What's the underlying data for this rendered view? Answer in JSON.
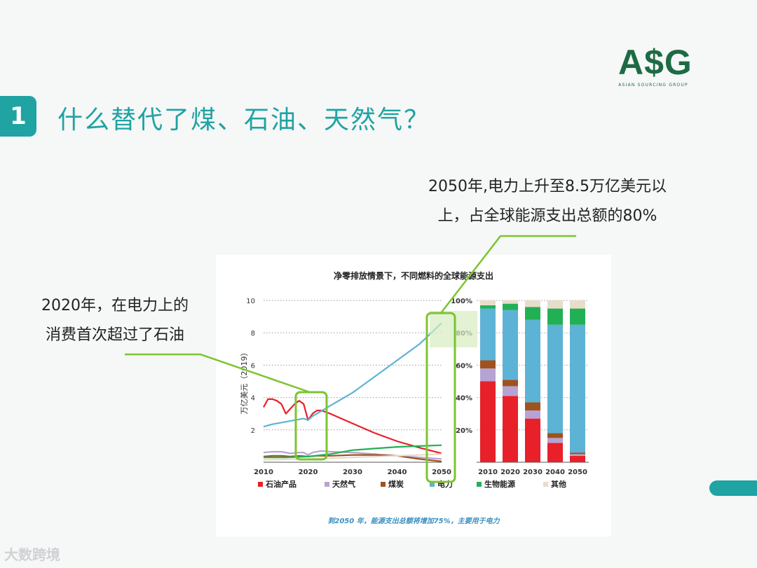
{
  "slide": {
    "number": "1",
    "title": "什么替代了煤、石油、天然气？",
    "logo_text": "A$G",
    "logo_subtext": "ASIAN SOURCING GROUP",
    "note_right_line1": "2050年,电力上升至8.5万亿美元以",
    "note_right_line2": "上，占全球能源支出总额的80%",
    "note_left_line1": "2020年，在电力上的",
    "note_left_line2": "消费首次超过了石油",
    "watermark": "大数跨境",
    "colors": {
      "accent": "#1fa3a3",
      "logo": "#1d6b44",
      "callout": "#7cc430"
    }
  },
  "chart_data": [
    {
      "type": "line",
      "title": "净零排放情景下，不同燃料的全球能源支出",
      "ylabel": "万亿美元（2019）",
      "xlabel": "",
      "xlim": [
        2010,
        2050
      ],
      "ylim": [
        0,
        10
      ],
      "xticks": [
        "2010",
        "2020",
        "2030",
        "2040",
        "2050"
      ],
      "yticks": [
        "2",
        "4",
        "6",
        "8",
        "10"
      ],
      "grid": true,
      "series": [
        {
          "name": "石油产品",
          "color": "#e8202a",
          "points": [
            [
              2010,
              3.4
            ],
            [
              2011,
              3.9
            ],
            [
              2012,
              3.9
            ],
            [
              2013,
              3.8
            ],
            [
              2014,
              3.6
            ],
            [
              2015,
              3.0
            ],
            [
              2016,
              3.3
            ],
            [
              2017,
              3.6
            ],
            [
              2018,
              3.8
            ],
            [
              2019,
              3.6
            ],
            [
              2020,
              2.6
            ],
            [
              2021,
              3.0
            ],
            [
              2022,
              3.2
            ],
            [
              2023,
              3.2
            ],
            [
              2025,
              3.0
            ],
            [
              2030,
              2.4
            ],
            [
              2035,
              1.8
            ],
            [
              2040,
              1.3
            ],
            [
              2045,
              0.9
            ],
            [
              2050,
              0.55
            ]
          ]
        },
        {
          "name": "天然气",
          "color": "#b6a3d3",
          "points": [
            [
              2010,
              0.6
            ],
            [
              2012,
              0.65
            ],
            [
              2014,
              0.65
            ],
            [
              2016,
              0.55
            ],
            [
              2018,
              0.6
            ],
            [
              2019,
              0.6
            ],
            [
              2020,
              0.45
            ],
            [
              2021,
              0.6
            ],
            [
              2023,
              0.7
            ],
            [
              2025,
              0.65
            ],
            [
              2030,
              0.6
            ],
            [
              2035,
              0.5
            ],
            [
              2040,
              0.4
            ],
            [
              2045,
              0.3
            ],
            [
              2050,
              0.2
            ]
          ]
        },
        {
          "name": "煤炭",
          "color": "#a0521e",
          "points": [
            [
              2010,
              0.35
            ],
            [
              2012,
              0.4
            ],
            [
              2014,
              0.4
            ],
            [
              2016,
              0.35
            ],
            [
              2018,
              0.4
            ],
            [
              2020,
              0.35
            ],
            [
              2022,
              0.4
            ],
            [
              2025,
              0.4
            ],
            [
              2030,
              0.45
            ],
            [
              2035,
              0.45
            ],
            [
              2040,
              0.4
            ],
            [
              2045,
              0.2
            ],
            [
              2050,
              0.05
            ]
          ]
        },
        {
          "name": "电力",
          "color": "#5db3d5",
          "points": [
            [
              2010,
              2.2
            ],
            [
              2012,
              2.35
            ],
            [
              2014,
              2.45
            ],
            [
              2016,
              2.55
            ],
            [
              2018,
              2.65
            ],
            [
              2019,
              2.7
            ],
            [
              2020,
              2.6
            ],
            [
              2021,
              2.85
            ],
            [
              2022,
              3.0
            ],
            [
              2025,
              3.5
            ],
            [
              2030,
              4.3
            ],
            [
              2035,
              5.3
            ],
            [
              2040,
              6.3
            ],
            [
              2045,
              7.3
            ],
            [
              2050,
              8.6
            ]
          ]
        },
        {
          "name": "生物能源",
          "color": "#22b055",
          "points": [
            [
              2010,
              0.3
            ],
            [
              2015,
              0.3
            ],
            [
              2020,
              0.35
            ],
            [
              2025,
              0.5
            ],
            [
              2030,
              0.75
            ],
            [
              2035,
              0.85
            ],
            [
              2040,
              0.95
            ],
            [
              2045,
              1.0
            ],
            [
              2050,
              1.05
            ]
          ]
        },
        {
          "name": "其他",
          "color": "#e7ddc9",
          "points": [
            [
              2010,
              0.15
            ],
            [
              2020,
              0.2
            ],
            [
              2030,
              0.3
            ],
            [
              2040,
              0.4
            ],
            [
              2050,
              0.5
            ]
          ]
        }
      ],
      "annotation": "到2050 年，能源支出总额将增加75%，主要用于电力"
    },
    {
      "type": "bar",
      "stacked": true,
      "unit": "%",
      "ylim": [
        0,
        100
      ],
      "yticks": [
        "20%",
        "40%",
        "60%",
        "80%",
        "100%"
      ],
      "categories": [
        "2010",
        "2020",
        "2030",
        "2040",
        "2050"
      ],
      "series": [
        {
          "name": "石油产品",
          "color": "#e8202a",
          "values": [
            50,
            41,
            27,
            12,
            4
          ]
        },
        {
          "name": "天然气",
          "color": "#b6a3d3",
          "values": [
            8,
            6,
            5,
            3,
            1
          ]
        },
        {
          "name": "煤炭",
          "color": "#a0521e",
          "values": [
            5,
            4,
            5,
            3,
            1
          ]
        },
        {
          "name": "电力",
          "color": "#5db3d5",
          "values": [
            32,
            43,
            51,
            67,
            79
          ]
        },
        {
          "name": "生物能源",
          "color": "#22b055",
          "values": [
            2,
            4,
            8,
            10,
            10
          ]
        },
        {
          "name": "其他",
          "color": "#e7ddc9",
          "values": [
            3,
            2,
            4,
            5,
            5
          ]
        }
      ]
    }
  ]
}
